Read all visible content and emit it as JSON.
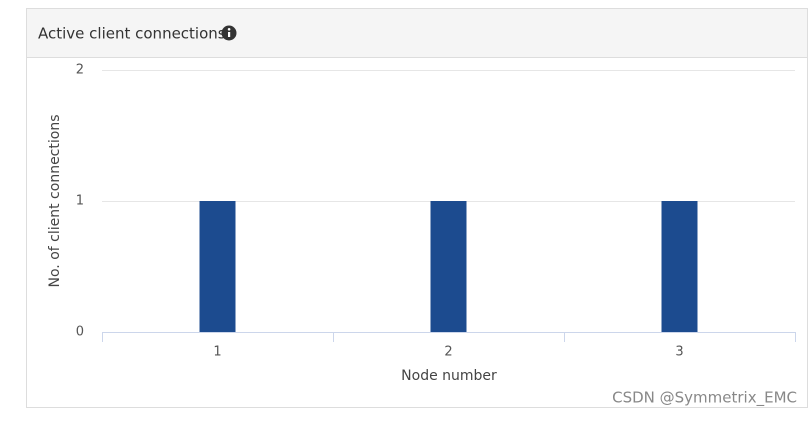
{
  "chart_data": {
    "type": "bar",
    "title": "Active client connections",
    "x_label": "Node number",
    "y_label": "No. of client connections",
    "categories": [
      "1",
      "2",
      "3"
    ],
    "values": [
      1,
      1,
      1
    ],
    "color": "#1c4b8f",
    "ylim": [
      0,
      2
    ],
    "yticks": [
      0,
      1,
      2
    ],
    "grid": true
  },
  "watermark": "CSDN @Symmetrix_EMC"
}
